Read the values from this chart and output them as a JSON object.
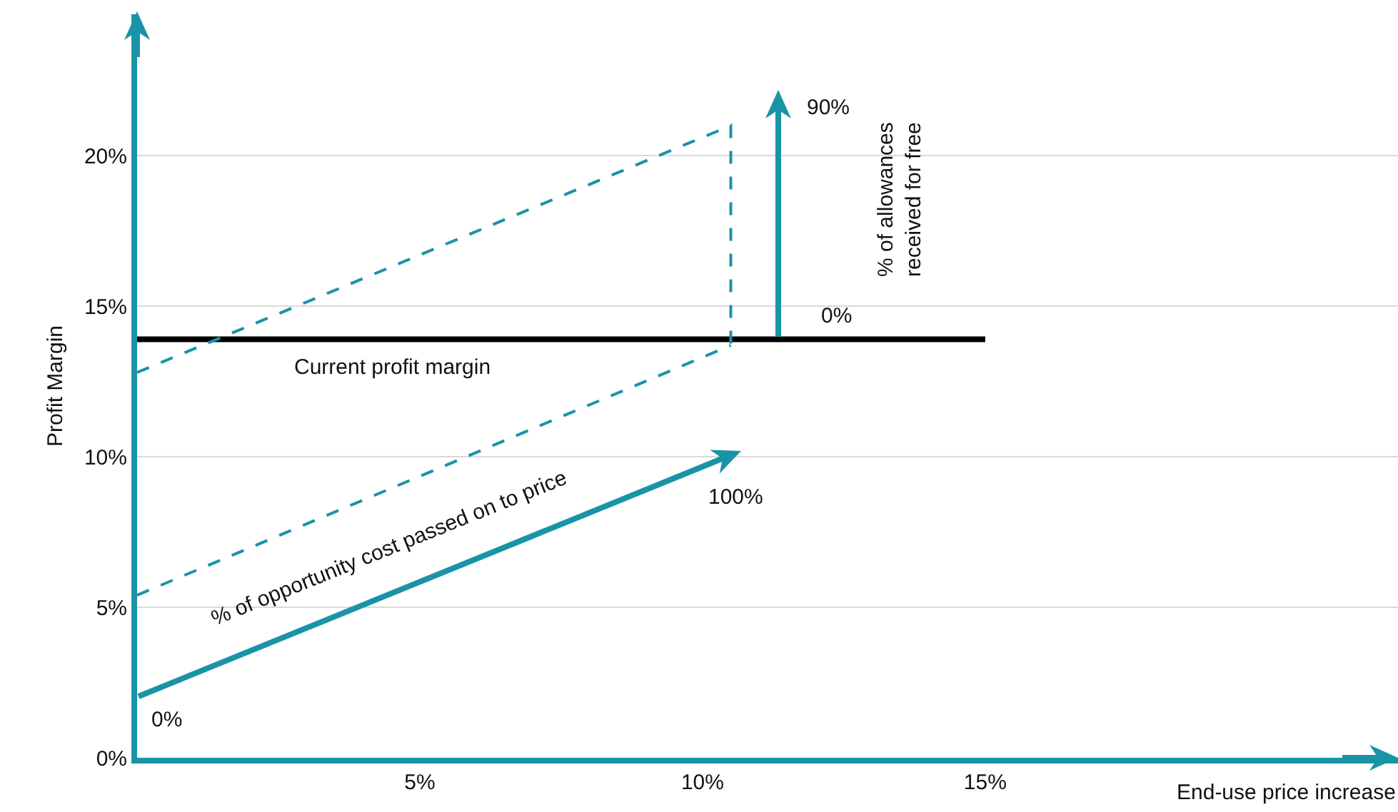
{
  "chart_data": {
    "type": "line",
    "xlabel": "End-use price increase",
    "ylabel": "Profit Margin",
    "xlim": [
      0,
      22.3
    ],
    "ylim": [
      0,
      24.7
    ],
    "xticks": [
      {
        "value": 5,
        "label": "5%"
      },
      {
        "value": 10,
        "label": "10%"
      },
      {
        "value": 15,
        "label": "15%"
      }
    ],
    "yticks": [
      {
        "value": 0,
        "label": "0%"
      },
      {
        "value": 5,
        "label": "5%"
      },
      {
        "value": 10,
        "label": "10%"
      },
      {
        "value": 15,
        "label": "15%"
      },
      {
        "value": 20,
        "label": "20%"
      }
    ],
    "grid": "y",
    "series": [
      {
        "color": "#000000",
        "x": [
          0,
          15
        ],
        "values": [
          13.9,
          13.9
        ],
        "line_style": "solid"
      },
      {
        "color": "#1a93a6",
        "x": [
          0,
          10.5,
          10.5
        ],
        "values": [
          12.8,
          21.0,
          13.7
        ],
        "line_style": "dashed"
      },
      {
        "color": "#1a93a6",
        "x": [
          0,
          10.5
        ],
        "values": [
          5.4,
          13.7
        ],
        "line_style": "dashed"
      }
    ],
    "annotations": [
      "Current profit margin",
      "0%",
      "100%",
      "90%",
      "0%",
      "% of opportunity cost passed on to price",
      "% of allowances\nreceived for free"
    ]
  }
}
